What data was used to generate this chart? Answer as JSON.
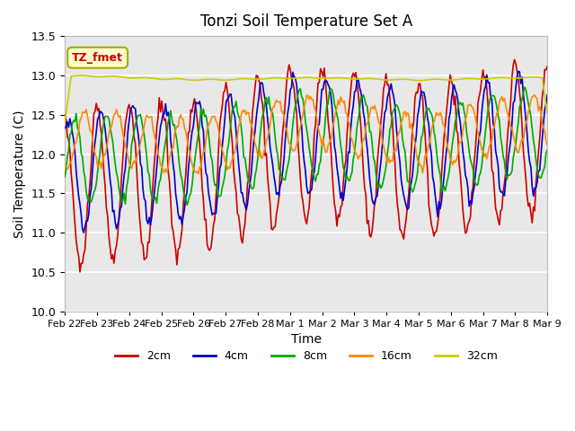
{
  "title": "Tonzi Soil Temperature Set A",
  "xlabel": "Time",
  "ylabel": "Soil Temperature (C)",
  "ylim": [
    10.0,
    13.5
  ],
  "xlim": [
    0,
    15
  ],
  "colors": {
    "2cm": "#cc0000",
    "4cm": "#0000cc",
    "8cm": "#00aa00",
    "16cm": "#ff8800",
    "32cm": "#cccc00"
  },
  "annotation_text": "TZ_fmet",
  "annotation_color": "#cc0000",
  "annotation_bg": "#ffffcc",
  "annotation_edge": "#aaaa00",
  "bg_color": "#e8e8e8",
  "grid_color": "#ffffff",
  "tick_labels": [
    "Feb 22",
    "Feb 23",
    "Feb 24",
    "Feb 25",
    "Feb 26",
    "Feb 27",
    "Feb 28",
    "Mar 1",
    "Mar 2",
    "Mar 3",
    "Mar 4",
    "Mar 5",
    "Mar 6",
    "Mar 7",
    "Mar 8",
    "Mar 9"
  ],
  "yticks": [
    10.0,
    10.5,
    11.0,
    11.5,
    12.0,
    12.5,
    13.0,
    13.5
  ],
  "legend_entries": [
    "2cm",
    "4cm",
    "8cm",
    "16cm",
    "32cm"
  ],
  "linewidth": 1.2
}
